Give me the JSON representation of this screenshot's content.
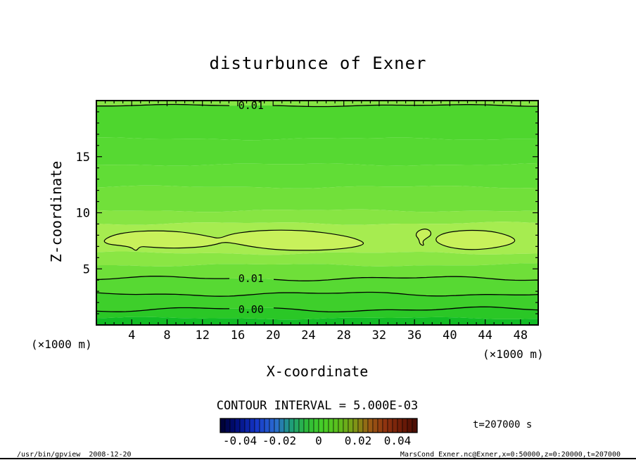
{
  "footer": {
    "left": "/usr/bin/gpview  2008-12-20",
    "right": "MarsCond_Exner.nc@Exner,x=0:50000,z=0:20000,t=207000"
  },
  "chart_data": {
    "type": "contour",
    "title": "disturbunce of Exner",
    "xlabel": "X-coordinate",
    "ylabel": "Z-coordinate",
    "x_axis_unit": "(×1000 m)",
    "y_axis_unit": "(×1000 m)",
    "xlim": [
      0,
      50
    ],
    "ylim": [
      0,
      20
    ],
    "xticks": [
      4,
      8,
      12,
      16,
      20,
      24,
      28,
      32,
      36,
      40,
      44,
      48
    ],
    "yticks": [
      5,
      10,
      15
    ],
    "x_minor_step": 1,
    "y_minor_step": 1,
    "contour_interval": 0.005,
    "contour_interval_label": "CONTOUR INTERVAL = 5.000E-03",
    "time_label": "t=207000 s",
    "field_bands": [
      {
        "z_bottom": 19.56,
        "color": "#86e545",
        "amp": 1.0,
        "phase": 0.3
      },
      {
        "z_bottom": 16.6,
        "color": "#4ed62e",
        "amp": 1.3,
        "phase": 2.1
      },
      {
        "z_bottom": 14.3,
        "color": "#56d932",
        "amp": 1.3,
        "phase": 4.0
      },
      {
        "z_bottom": 12.3,
        "color": "#61dd36",
        "amp": 1.4,
        "phase": 0.9
      },
      {
        "z_bottom": 10.2,
        "color": "#71e03a",
        "amp": 1.4,
        "phase": 3.2
      },
      {
        "z_bottom": 9.05,
        "color": "#87e543",
        "amp": 1.5,
        "phase": 5.1
      },
      {
        "z_bottom": 6.4,
        "color": "#a6ec50",
        "amp": 1.6,
        "phase": 1.6
      },
      {
        "z_bottom": 5.35,
        "color": "#8ae644",
        "amp": 1.5,
        "phase": 4.4
      },
      {
        "z_bottom": 4.14,
        "color": "#6fdf39",
        "amp": 2.2,
        "phase": 0.7
      },
      {
        "z_bottom": 2.76,
        "color": "#57d933",
        "amp": 2.2,
        "phase": 2.9
      },
      {
        "z_bottom": 1.38,
        "color": "#3ecf2b",
        "amp": 2.4,
        "phase": 5.6
      },
      {
        "z_bottom": 0.6,
        "color": "#2ac726",
        "amp": 1.2,
        "phase": 1.1
      },
      {
        "z_bottom": 0,
        "color": "#12bc25",
        "amp": 0,
        "phase": 0
      }
    ],
    "contour_lines": [
      {
        "level": 0.01,
        "z": 19.56,
        "amp": 1.0,
        "phase": 0.3,
        "label": {
          "text": "0.01",
          "x": 17.5
        }
      },
      {
        "level": 0.01,
        "z": 4.14,
        "amp": 2.2,
        "phase": 0.7,
        "label": {
          "text": "0.01",
          "x": 17.5
        }
      },
      {
        "level": 0.005,
        "z": 2.76,
        "amp": 2.2,
        "phase": 2.9
      },
      {
        "level": 0.0,
        "z": 1.38,
        "amp": 2.4,
        "phase": 5.6,
        "label": {
          "text": "0.00",
          "x": 17.5
        }
      }
    ],
    "blob_level": 0.015,
    "blob_color": "#c8f15b",
    "blobs": [
      {
        "points": [
          [
            0.7,
            7.5
          ],
          [
            1.8,
            8.0
          ],
          [
            3.8,
            8.3
          ],
          [
            6.2,
            8.4
          ],
          [
            9.0,
            8.35
          ],
          [
            11.4,
            8.1
          ],
          [
            13.0,
            7.85
          ],
          [
            13.9,
            7.7
          ],
          [
            15.2,
            8.1
          ],
          [
            17.4,
            8.35
          ],
          [
            19.7,
            8.45
          ],
          [
            22.1,
            8.45
          ],
          [
            24.5,
            8.35
          ],
          [
            26.9,
            8.1
          ],
          [
            28.9,
            7.8
          ],
          [
            30.1,
            7.45
          ],
          [
            30.3,
            7.2
          ],
          [
            29.3,
            6.95
          ],
          [
            27.3,
            6.75
          ],
          [
            24.9,
            6.65
          ],
          [
            22.1,
            6.65
          ],
          [
            19.7,
            6.75
          ],
          [
            17.4,
            7.0
          ],
          [
            15.8,
            7.25
          ],
          [
            14.4,
            7.4
          ],
          [
            13.4,
            7.15
          ],
          [
            11.8,
            6.95
          ],
          [
            9.8,
            6.85
          ],
          [
            7.8,
            6.85
          ],
          [
            5.8,
            6.95
          ],
          [
            4.9,
            7.0
          ],
          [
            4.5,
            6.55
          ],
          [
            3.9,
            6.95
          ],
          [
            2.5,
            7.1
          ],
          [
            1.3,
            7.2
          ]
        ]
      },
      {
        "points": [
          [
            36.4,
            8.4
          ],
          [
            37.2,
            8.6
          ],
          [
            37.8,
            8.4
          ],
          [
            37.9,
            8.0
          ],
          [
            37.3,
            7.7
          ],
          [
            36.9,
            7.45
          ],
          [
            37.1,
            7.05
          ],
          [
            36.6,
            7.2
          ],
          [
            36.5,
            7.65
          ],
          [
            36.1,
            8.0
          ]
        ]
      },
      {
        "points": [
          [
            38.5,
            7.85
          ],
          [
            39.4,
            8.2
          ],
          [
            41.0,
            8.4
          ],
          [
            42.8,
            8.45
          ],
          [
            44.7,
            8.35
          ],
          [
            46.1,
            8.1
          ],
          [
            47.1,
            7.8
          ],
          [
            47.45,
            7.5
          ],
          [
            46.9,
            7.2
          ],
          [
            45.6,
            6.95
          ],
          [
            43.9,
            6.75
          ],
          [
            41.9,
            6.7
          ],
          [
            40.0,
            6.9
          ],
          [
            38.9,
            7.2
          ],
          [
            38.4,
            7.5
          ]
        ]
      }
    ],
    "colorbar": {
      "min": -0.05,
      "max": 0.05,
      "segments": 40,
      "ticks": [
        "-0.04",
        "-0.02",
        "0",
        "0.02",
        "0.04"
      ],
      "tick_values": [
        -0.04,
        -0.02,
        0,
        0.02,
        0.04
      ],
      "anchors": [
        [
          0.0,
          "#00002e"
        ],
        [
          0.08,
          "#000d7a"
        ],
        [
          0.18,
          "#1535c8"
        ],
        [
          0.28,
          "#2b6bd0"
        ],
        [
          0.36,
          "#1f9d7a"
        ],
        [
          0.44,
          "#2dbb3a"
        ],
        [
          0.52,
          "#46cf28"
        ],
        [
          0.6,
          "#5cbe1c"
        ],
        [
          0.68,
          "#7d9a16"
        ],
        [
          0.76,
          "#9a5a14"
        ],
        [
          0.84,
          "#8f3310"
        ],
        [
          0.92,
          "#6f1d08"
        ],
        [
          1.0,
          "#470b03"
        ]
      ]
    }
  }
}
